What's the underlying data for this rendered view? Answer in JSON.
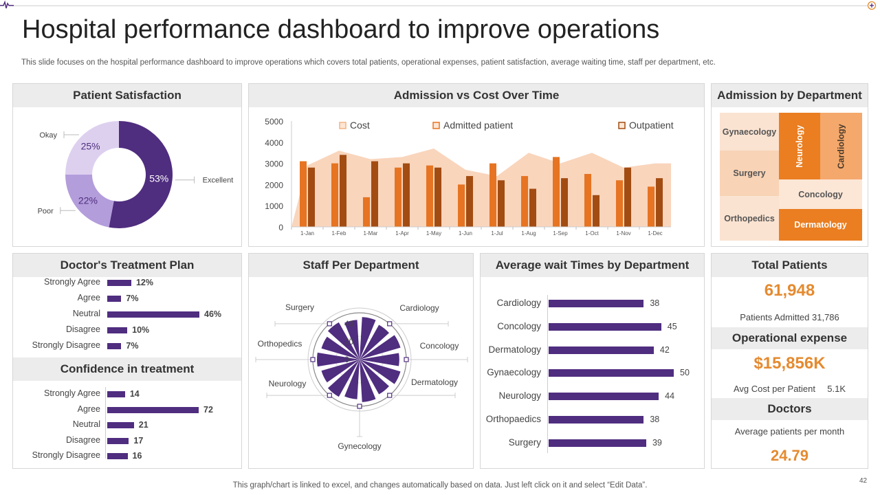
{
  "colors": {
    "purple": "#4f2d7f",
    "orange": "#e67422",
    "brown": "#a24c12",
    "peach": "#f9d5bc",
    "accent": "#e58a2f"
  },
  "slide": {
    "title": "Hospital performance dashboard to improve operations",
    "subtitle": "This slide focuses on the hospital performance dashboard to improve operations which covers total patients, operational expenses, patient satisfaction, average waiting time, staff per department, etc.",
    "footer": "This graph/chart is linked to excel,  and changes automatically based on data. Just left click on it and select “Edit Data”.",
    "page_number": "42"
  },
  "patient_satisfaction": {
    "title": "Patient Satisfaction",
    "chart_data": {
      "type": "pie",
      "labels": [
        "Excellent",
        "Poor",
        "Okay"
      ],
      "values": [
        53,
        22,
        25
      ],
      "value_labels": [
        "53%",
        "22%",
        "25%"
      ]
    }
  },
  "admission_cost": {
    "title": "Admission vs Cost Over Time",
    "legend": {
      "cost": "Cost",
      "admitted": "Admitted patient",
      "outpatient": "Outpatient"
    },
    "y_ticks": [
      "5000",
      "4000",
      "3000",
      "2000",
      "1000",
      "0"
    ],
    "chart_data": {
      "type": "bar",
      "categories": [
        "1-Jan",
        "1-Feb",
        "1-Mar",
        "1-Apr",
        "1-May",
        "1-Jun",
        "1-Jul",
        "1-Aug",
        "1-Sep",
        "1-Oct",
        "1-Nov",
        "1-Dec"
      ],
      "ylim": [
        0,
        5000
      ],
      "series": [
        {
          "name": "Cost",
          "kind": "area",
          "values": [
            2900,
            3600,
            3200,
            3300,
            3700,
            2700,
            2400,
            3500,
            3000,
            3500,
            2800,
            3000
          ]
        },
        {
          "name": "Admitted patient",
          "values": [
            3100,
            3000,
            1400,
            2800,
            2900,
            2000,
            3000,
            2400,
            3300,
            2500,
            2200,
            1900
          ]
        },
        {
          "name": "Outpatient",
          "values": [
            2800,
            3400,
            3100,
            3000,
            2800,
            2400,
            2200,
            1800,
            2300,
            1500,
            2800,
            2300
          ]
        }
      ]
    }
  },
  "admission_dept": {
    "title": "Admission by Department",
    "tiles": {
      "gynaecology": "Gynaecology",
      "neurology": "Neurology",
      "cardiology": "Cardiology",
      "surgery": "Surgery",
      "concology": "Concology",
      "orthopedics": "Orthopedics",
      "dermatology": "Dermatology"
    }
  },
  "treatment_plan": {
    "title": "Doctor's  Treatment Plan",
    "chart_data": {
      "type": "bar",
      "categories": [
        "Strongly Agree",
        "Agree",
        "Neutral",
        "Disagree",
        "Strongly Disagree"
      ],
      "values": [
        12,
        7,
        46,
        10,
        7
      ],
      "value_labels": [
        "12%",
        "7%",
        "46%",
        "10%",
        "7%"
      ]
    }
  },
  "confidence": {
    "title": "Confidence in treatment",
    "chart_data": {
      "type": "bar",
      "categories": [
        "Strongly Agree",
        "Agree",
        "Neutral",
        "Disagree",
        "Strongly Disagree"
      ],
      "values": [
        14,
        72,
        21,
        17,
        16
      ]
    }
  },
  "staff": {
    "title": "Staff Per Department",
    "chart_data": {
      "type": "radar",
      "categories": [
        "Cardiology",
        "Concology",
        "Dermatology",
        "Gynecology",
        "Neurology",
        "Orthopedics",
        "Surgery"
      ],
      "values": [
        32,
        30,
        26,
        28,
        26,
        28,
        30
      ],
      "r_ticks": [
        "40",
        "20",
        "0"
      ],
      "rlim": [
        0,
        40
      ]
    }
  },
  "wait_times": {
    "title": "Average wait Times by Department",
    "chart_data": {
      "type": "bar",
      "categories": [
        "Cardiology",
        "Concology",
        "Dermatology",
        "Gynaecology",
        "Neurology",
        "Orthopaedics",
        "Surgery"
      ],
      "values": [
        38,
        45,
        42,
        50,
        44,
        38,
        39
      ]
    }
  },
  "totals": {
    "total_patients_title": "Total Patients",
    "total_patients_value": "61,948",
    "patients_admitted": "Patients Admitted 31,786",
    "opex_title": "Operational expense",
    "opex_value": "$15,856K",
    "avg_cost_label": "Avg Cost per Patient",
    "avg_cost_value": "5.1K",
    "doctors_title": "Doctors",
    "avg_patients_label": "Average  patients per month",
    "avg_patients_value": "24.79"
  }
}
